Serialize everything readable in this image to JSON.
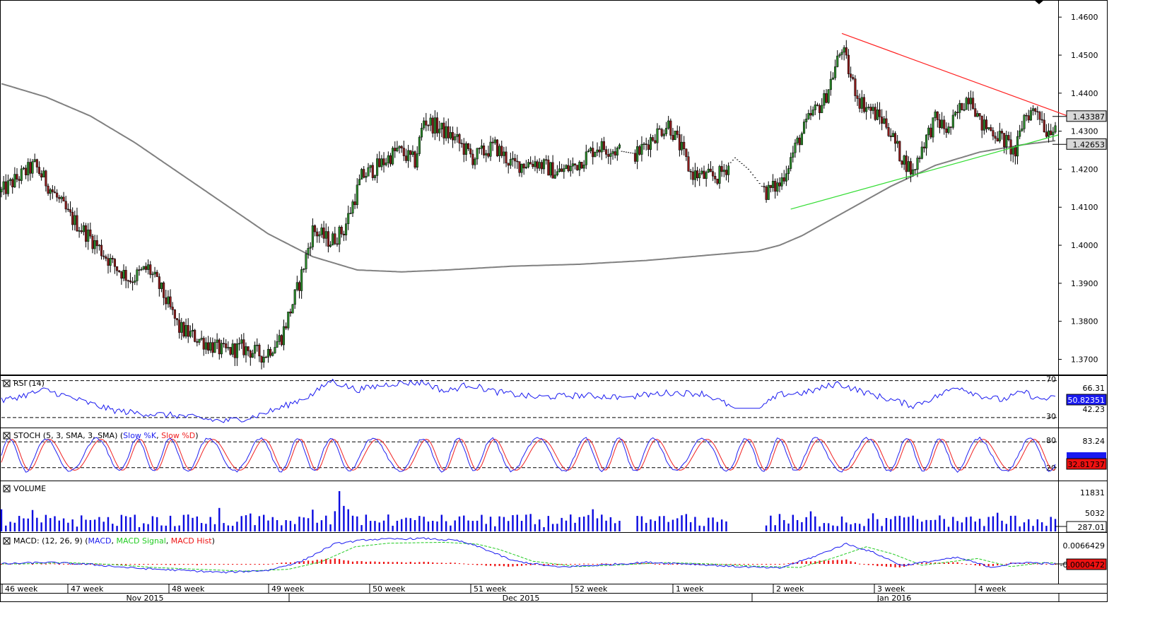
{
  "colors": {
    "frame": "#000000",
    "candle_up": "#2a8a2a",
    "candle_down": "#8a1a1a",
    "ma": "#808080",
    "resistance": "#ff2020",
    "support": "#33dd33",
    "rsi": "#1a1af0",
    "stoch_k": "#2020f0",
    "stoch_d": "#f02020",
    "volume": "#0a0ae0",
    "macd": "#1a1af0",
    "macd_signal": "#22cc22",
    "macd_hist": "#ee1111"
  },
  "chart_data": {
    "type": "candlestick",
    "instrument_ylim": [
      1.366,
      1.4645
    ],
    "yticks": [
      "1.4600",
      "1.4500",
      "1.4400",
      "1.4300",
      "1.4200",
      "1.4100",
      "1.4000",
      "1.3900",
      "1.3800",
      "1.3700"
    ],
    "price_tags": [
      {
        "label": "1.43387",
        "value": 1.43387
      },
      {
        "label": "1.42653",
        "value": 1.42653
      }
    ],
    "close_key_points": [
      [
        0,
        1.414
      ],
      [
        8,
        1.418
      ],
      [
        15,
        1.421
      ],
      [
        22,
        1.415
      ],
      [
        30,
        1.408
      ],
      [
        40,
        1.402
      ],
      [
        50,
        1.395
      ],
      [
        58,
        1.391
      ],
      [
        66,
        1.394
      ],
      [
        72,
        1.388
      ],
      [
        80,
        1.378
      ],
      [
        90,
        1.375
      ],
      [
        100,
        1.372
      ],
      [
        108,
        1.373
      ],
      [
        118,
        1.371
      ],
      [
        126,
        1.376
      ],
      [
        134,
        1.39
      ],
      [
        140,
        1.404
      ],
      [
        148,
        1.401
      ],
      [
        154,
        1.404
      ],
      [
        162,
        1.418
      ],
      [
        170,
        1.421
      ],
      [
        178,
        1.425
      ],
      [
        186,
        1.422
      ],
      [
        190,
        1.433
      ],
      [
        196,
        1.431
      ],
      [
        204,
        1.428
      ],
      [
        212,
        1.423
      ],
      [
        222,
        1.426
      ],
      [
        230,
        1.421
      ],
      [
        240,
        1.422
      ],
      [
        250,
        1.419
      ],
      [
        258,
        1.421
      ],
      [
        268,
        1.426
      ],
      [
        276,
        1.425
      ],
      [
        286,
        1.424
      ],
      [
        292,
        1.428
      ],
      [
        300,
        1.432
      ],
      [
        306,
        1.425
      ],
      [
        310,
        1.419
      ],
      [
        316,
        1.418
      ],
      [
        322,
        1.418
      ],
      [
        330,
        1.423
      ],
      [
        336,
        1.42
      ],
      [
        344,
        1.414
      ],
      [
        350,
        1.416
      ],
      [
        358,
        1.427
      ],
      [
        364,
        1.434
      ],
      [
        370,
        1.438
      ],
      [
        374,
        1.445
      ],
      [
        378,
        1.452
      ],
      [
        382,
        1.444
      ],
      [
        386,
        1.438
      ],
      [
        392,
        1.435
      ],
      [
        398,
        1.432
      ],
      [
        404,
        1.424
      ],
      [
        410,
        1.419
      ],
      [
        414,
        1.426
      ],
      [
        420,
        1.433
      ],
      [
        426,
        1.43
      ],
      [
        432,
        1.437
      ],
      [
        436,
        1.44
      ],
      [
        440,
        1.432
      ],
      [
        446,
        1.43
      ],
      [
        452,
        1.427
      ],
      [
        456,
        1.424
      ],
      [
        460,
        1.434
      ],
      [
        466,
        1.436
      ],
      [
        470,
        1.43
      ],
      [
        474,
        1.432
      ]
    ],
    "ma_key_points": [
      [
        0,
        1.4425
      ],
      [
        20,
        1.439
      ],
      [
        40,
        1.434
      ],
      [
        60,
        1.427
      ],
      [
        80,
        1.419
      ],
      [
        100,
        1.411
      ],
      [
        120,
        1.403
      ],
      [
        140,
        1.397
      ],
      [
        160,
        1.3935
      ],
      [
        180,
        1.393
      ],
      [
        200,
        1.3935
      ],
      [
        230,
        1.3945
      ],
      [
        260,
        1.395
      ],
      [
        290,
        1.396
      ],
      [
        310,
        1.397
      ],
      [
        340,
        1.3985
      ],
      [
        350,
        1.4
      ],
      [
        360,
        1.4025
      ],
      [
        380,
        1.409
      ],
      [
        400,
        1.4155
      ],
      [
        420,
        1.421
      ],
      [
        440,
        1.4245
      ],
      [
        460,
        1.4265
      ],
      [
        474,
        1.4275
      ]
    ],
    "resistance_line": {
      "from_bar": 378,
      "from": 1.4557,
      "to_bar": 474,
      "to": 1.4338
    },
    "support_line": {
      "from_bar": 355,
      "from": 1.4095,
      "to_bar": 474,
      "to": 1.429
    },
    "gaps": [
      [
        279,
        284
      ],
      [
        328,
        342
      ]
    ],
    "x_week_labels": [
      "46 week",
      "47 week",
      "48 week",
      "49 week",
      "50 week",
      "51 week",
      "52 week",
      "1 week",
      "2 week",
      "3 week",
      "4 week"
    ],
    "x_month_labels": [
      "Nov 2015",
      "Dec 2015",
      "Jan 2016"
    ],
    "panels": [
      {
        "id": "rsi",
        "legend": "RSI (14)",
        "legend_parts": [
          {
            "text": "RSI (14)",
            "color": "#000000"
          }
        ],
        "levels": [
          "70",
          "30"
        ],
        "axis_labels": [
          "66.31",
          "42.23"
        ],
        "value_tag": "50.82351",
        "series": [
          {
            "name": "RSI",
            "key": [
              [
                0,
                48
              ],
              [
                20,
                60
              ],
              [
                40,
                45
              ],
              [
                50,
                38
              ],
              [
                60,
                35
              ],
              [
                80,
                32
              ],
              [
                100,
                26
              ],
              [
                112,
                30
              ],
              [
                125,
                40
              ],
              [
                140,
                55
              ],
              [
                148,
                70
              ],
              [
                160,
                60
              ],
              [
                176,
                67
              ],
              [
                190,
                68
              ],
              [
                200,
                58
              ],
              [
                210,
                66
              ],
              [
                222,
                58
              ],
              [
                240,
                52
              ],
              [
                260,
                54
              ],
              [
                280,
                52
              ],
              [
                300,
                57
              ],
              [
                316,
                56
              ],
              [
                330,
                40
              ],
              [
                341,
                40
              ],
              [
                350,
                55
              ],
              [
                362,
                57
              ],
              [
                376,
                67
              ],
              [
                390,
                56
              ],
              [
                402,
                48
              ],
              [
                410,
                43
              ],
              [
                420,
                52
              ],
              [
                430,
                64
              ],
              [
                440,
                54
              ],
              [
                450,
                49
              ],
              [
                460,
                58
              ],
              [
                466,
                50
              ],
              [
                474,
                50.8
              ]
            ],
            "lo": 23,
            "hi": 72
          }
        ]
      },
      {
        "id": "stoch",
        "legend": "STOCH (5, 3, SMA, 3, SMA)",
        "legend_parts": [
          {
            "text": "STOCH (5, 3, SMA, 3, SMA) (",
            "color": "#000000"
          },
          {
            "text": "Slow %K",
            "color": "#2020f0"
          },
          {
            "text": ", ",
            "color": "#000000"
          },
          {
            "text": "Slow %D",
            "color": "#f02020"
          },
          {
            "text": ")",
            "color": "#000000"
          }
        ],
        "levels": [
          "80",
          "20"
        ],
        "axis_labels": [
          "83.24"
        ],
        "value_tag": "32.81737"
      },
      {
        "id": "volume",
        "legend": "VOLUME",
        "legend_parts": [
          {
            "text": "VOLUME",
            "color": "#000000"
          }
        ],
        "axis_labels": [
          "11831",
          "5032"
        ],
        "value_tag": "287.01"
      },
      {
        "id": "macd",
        "legend": "MACD (12, 26, 9)",
        "legend_parts": [
          {
            "text": "MACD: (12, 26, 9) (",
            "color": "#000000"
          },
          {
            "text": "MACD",
            "color": "#1a1af0"
          },
          {
            "text": ", ",
            "color": "#000000"
          },
          {
            "text": "MACD Signal",
            "color": "#22cc22"
          },
          {
            "text": ", ",
            "color": "#000000"
          },
          {
            "text": "MACD Hist",
            "color": "#ee1111"
          },
          {
            "text": ")",
            "color": "#000000"
          }
        ],
        "axis_labels": [
          "0.0066429"
        ],
        "value_tag": "-0.0000472"
      }
    ]
  }
}
